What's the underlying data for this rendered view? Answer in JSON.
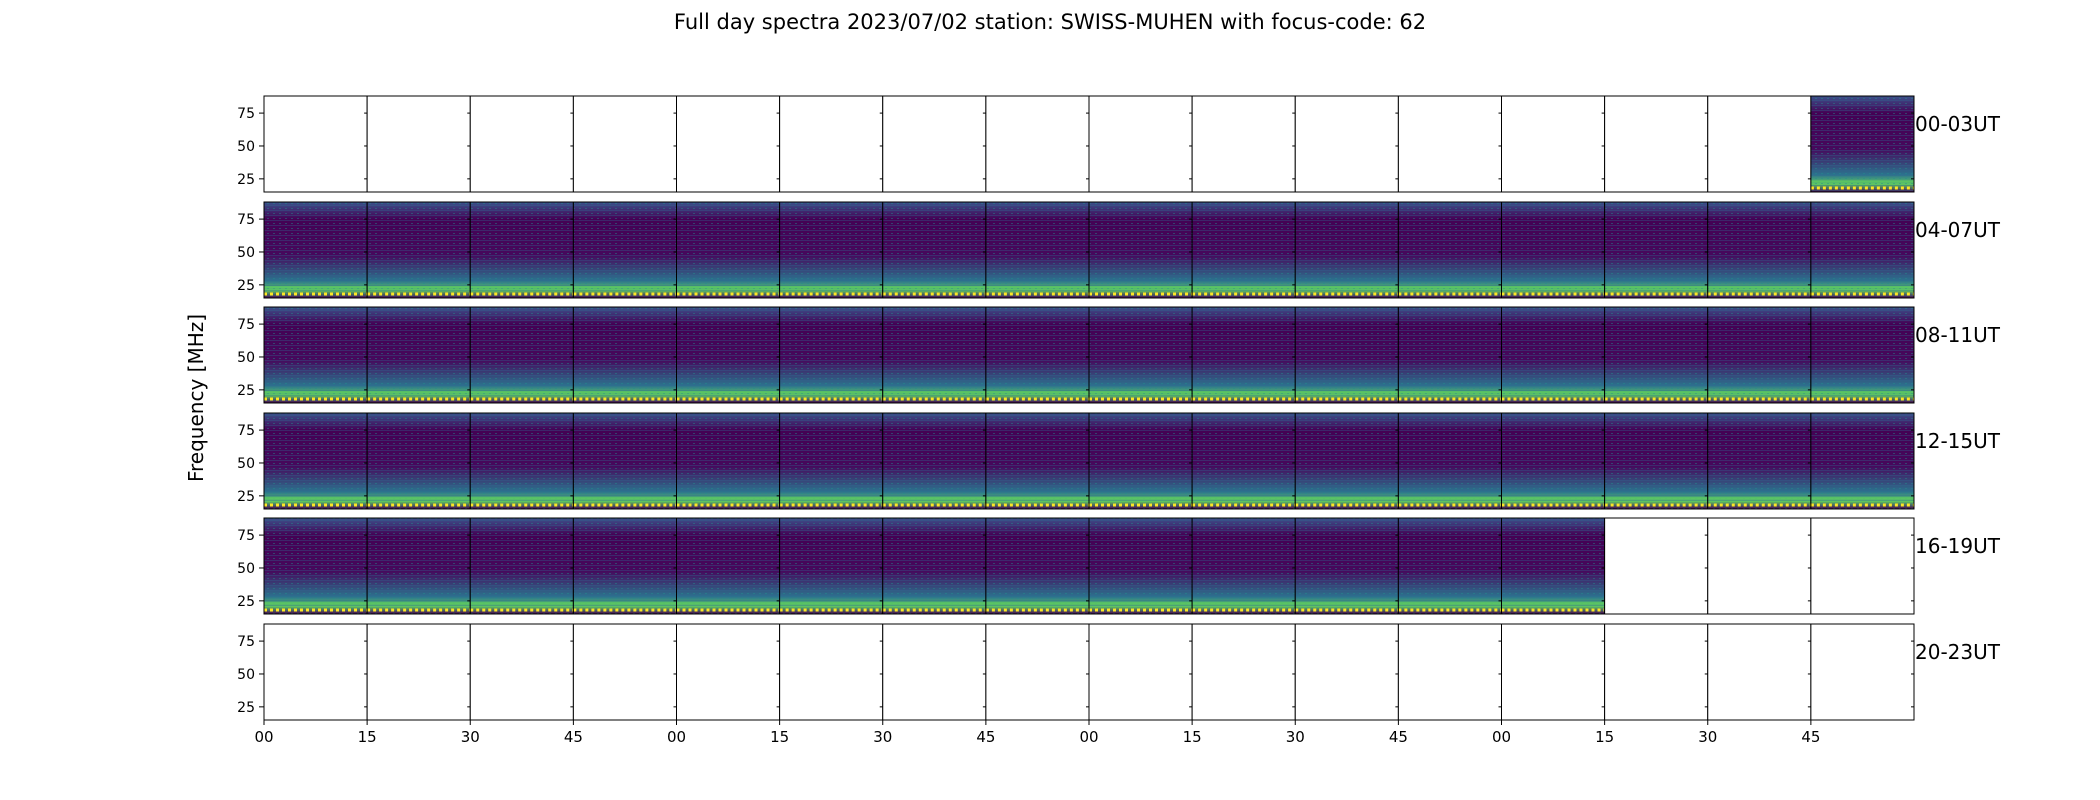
{
  "chart_data": {
    "type": "heatmap",
    "title": "Full day spectra 2023/07/02 station: SWISS-MUHEN with focus-code: 62",
    "ylabel": "Frequency [MHz]",
    "xlabel": "",
    "y_ticks": [
      25,
      50,
      75
    ],
    "ylim": [
      15,
      88
    ],
    "x_tick_labels": [
      "00",
      "15",
      "30",
      "45",
      "00",
      "15",
      "30",
      "45",
      "00",
      "15",
      "30",
      "45",
      "00",
      "15",
      "30",
      "45"
    ],
    "rows": [
      {
        "label": "00-03UT",
        "panels_with_data": [
          15
        ]
      },
      {
        "label": "04-07UT",
        "panels_with_data": [
          0,
          1,
          2,
          3,
          4,
          5,
          6,
          7,
          8,
          9,
          10,
          11,
          12,
          13,
          14,
          15
        ]
      },
      {
        "label": "08-11UT",
        "panels_with_data": [
          0,
          1,
          2,
          3,
          4,
          5,
          6,
          7,
          8,
          9,
          10,
          11,
          12,
          13,
          14,
          15
        ]
      },
      {
        "label": "12-15UT",
        "panels_with_data": [
          0,
          1,
          2,
          3,
          4,
          5,
          6,
          7,
          8,
          9,
          10,
          11,
          12,
          13,
          14,
          15
        ]
      },
      {
        "label": "16-19UT",
        "panels_with_data": [
          0,
          1,
          2,
          3,
          4,
          5,
          6,
          7,
          8,
          9,
          10,
          11,
          12
        ]
      },
      {
        "label": "20-23UT",
        "panels_with_data": []
      }
    ],
    "panels_per_row": 16,
    "panel_minutes": 15,
    "colormap": [
      "#440154",
      "#3b528b",
      "#21918c",
      "#5ec962",
      "#fde725"
    ],
    "grid": false
  }
}
